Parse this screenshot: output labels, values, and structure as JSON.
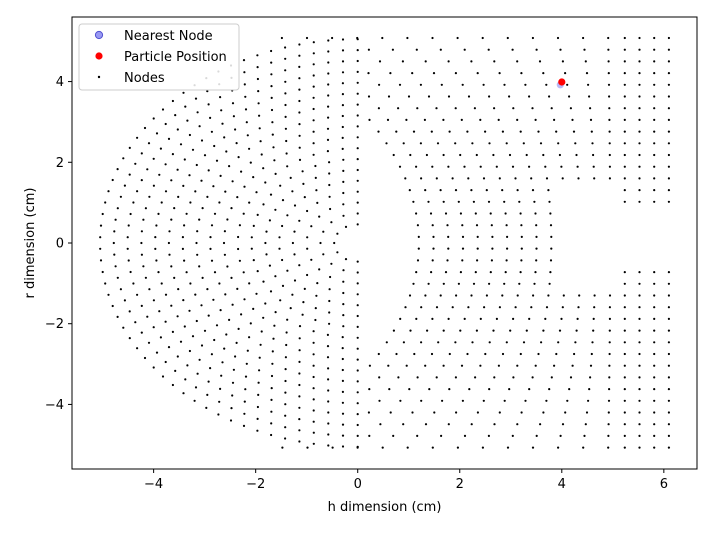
{
  "chart_data": {
    "type": "scatter",
    "title": "",
    "xlabel": "h dimension (cm)",
    "ylabel": "r dimension (cm)",
    "xlim": [
      -5.6,
      6.65
    ],
    "ylim": [
      -5.6,
      5.6
    ],
    "xticks": [
      -4,
      -2,
      0,
      2,
      4,
      6
    ],
    "yticks": [
      -4,
      -2,
      0,
      2,
      4
    ],
    "grid": false,
    "legend_position": "top-left",
    "legend": [
      {
        "label": "Nearest Node",
        "marker": "circle",
        "color": "#8080f0"
      },
      {
        "label": "Particle Position",
        "marker": "circle",
        "color": "#ff0000"
      },
      {
        "label": "Nodes",
        "marker": "dot",
        "color": "#000000"
      }
    ],
    "series": [
      {
        "name": "Nearest Node",
        "x": [
          3.97
        ],
        "y": [
          3.92
        ],
        "color": "#8080f0"
      },
      {
        "name": "Particle Position",
        "x": [
          4.0
        ],
        "y": [
          3.99
        ],
        "color": "#ff0000"
      },
      {
        "name": "Nodes",
        "color": "#000000",
        "pattern": {
          "shell_center": [
            0.0,
            0.0
          ],
          "shell_radius_max": 5.05,
          "shell_step": 0.27,
          "shell_x_scale": 1.0,
          "right_columns_x": [
            1.2,
            6.1
          ],
          "right_column_step": 0.29,
          "row_step": 0.29,
          "cutout": {
            "x_min": 3.85,
            "y_min": -1.25,
            "y_max": 1.35
          },
          "cutout_slot": {
            "x_min": 5.15,
            "y_min": -0.45,
            "y_max": 0.45
          }
        }
      }
    ]
  }
}
